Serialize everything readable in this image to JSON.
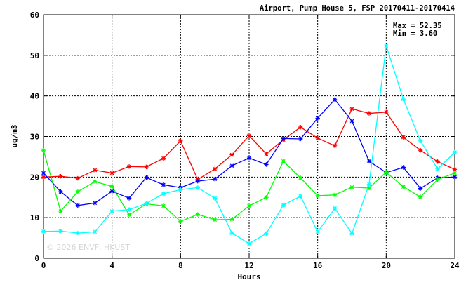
{
  "chart_data": {
    "type": "line",
    "title": "Airport, Pump House 5, FSP 20170411-20170414",
    "xlabel": "Hours",
    "ylabel": "ug/m3",
    "xlim": [
      0,
      24
    ],
    "ylim": [
      0,
      60
    ],
    "xticks": [
      "0",
      "4",
      "8",
      "12",
      "16",
      "20",
      "24"
    ],
    "yticks": [
      "0",
      "10",
      "20",
      "30",
      "40",
      "50",
      "60"
    ],
    "grid": true,
    "stats": {
      "max_label": "Max = 52.35",
      "min_label": "Min =  3.60"
    },
    "watermark": "© 2026 ENVF, HKUST",
    "x": [
      0,
      1,
      2,
      3,
      4,
      5,
      6,
      7,
      8,
      9,
      10,
      11,
      12,
      13,
      14,
      15,
      16,
      17,
      18,
      19,
      20,
      21,
      22,
      23,
      24
    ],
    "series": [
      {
        "color": "#ff0000",
        "values": [
          20.0,
          20.2,
          19.7,
          21.7,
          21.0,
          22.6,
          22.5,
          24.6,
          28.9,
          19.4,
          22.0,
          25.5,
          30.2,
          25.7,
          29.2,
          32.3,
          29.6,
          27.7,
          36.8,
          35.7,
          36.0,
          29.8,
          26.6,
          23.8,
          21.9
        ]
      },
      {
        "color": "#0000ff",
        "values": [
          21.0,
          16.4,
          13.0,
          13.6,
          16.5,
          14.8,
          19.9,
          18.1,
          17.4,
          19.0,
          19.5,
          22.8,
          24.7,
          23.1,
          29.5,
          29.4,
          34.5,
          39.1,
          33.8,
          23.9,
          21.1,
          22.4,
          17.2,
          19.8,
          20.0
        ]
      },
      {
        "color": "#00ff00",
        "values": [
          26.6,
          11.6,
          16.4,
          18.9,
          17.7,
          10.7,
          13.4,
          12.9,
          9.1,
          10.8,
          9.5,
          9.6,
          12.9,
          15.0,
          23.9,
          19.8,
          15.4,
          15.6,
          17.5,
          17.3,
          21.2,
          17.6,
          15.1,
          19.4,
          21.0
        ]
      },
      {
        "color": "#00ffff",
        "values": [
          6.6,
          6.7,
          6.2,
          6.5,
          11.6,
          12.0,
          13.5,
          15.9,
          16.9,
          17.4,
          14.8,
          6.2,
          3.6,
          6.1,
          13.1,
          15.3,
          6.5,
          12.3,
          6.1,
          18.2,
          52.35,
          39.2,
          28.9,
          22.0,
          26.1
        ]
      }
    ]
  }
}
